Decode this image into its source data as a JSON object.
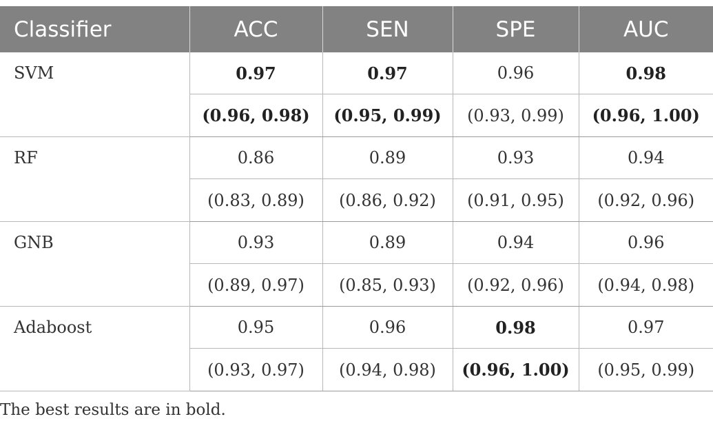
{
  "table": {
    "headers": [
      "Classifier",
      "ACC",
      "SEN",
      "SPE",
      "AUC"
    ],
    "rows": [
      {
        "classifier": "SVM",
        "values": [
          {
            "point": "0.97",
            "ci": "(0.96, 0.98)",
            "bold": true
          },
          {
            "point": "0.97",
            "ci": "(0.95, 0.99)",
            "bold": true
          },
          {
            "point": "0.96",
            "ci": "(0.93, 0.99)",
            "bold": false
          },
          {
            "point": "0.98",
            "ci": "(0.96, 1.00)",
            "bold": true
          }
        ]
      },
      {
        "classifier": "RF",
        "values": [
          {
            "point": "0.86",
            "ci": "(0.83, 0.89)",
            "bold": false
          },
          {
            "point": "0.89",
            "ci": "(0.86, 0.92)",
            "bold": false
          },
          {
            "point": "0.93",
            "ci": "(0.91, 0.95)",
            "bold": false
          },
          {
            "point": "0.94",
            "ci": "(0.92, 0.96)",
            "bold": false
          }
        ]
      },
      {
        "classifier": "GNB",
        "values": [
          {
            "point": "0.93",
            "ci": "(0.89, 0.97)",
            "bold": false
          },
          {
            "point": "0.89",
            "ci": "(0.85, 0.93)",
            "bold": false
          },
          {
            "point": "0.94",
            "ci": "(0.92, 0.96)",
            "bold": false
          },
          {
            "point": "0.96",
            "ci": "(0.94, 0.98)",
            "bold": false
          }
        ]
      },
      {
        "classifier": "Adaboost",
        "values": [
          {
            "point": "0.95",
            "ci": "(0.93, 0.97)",
            "bold": false
          },
          {
            "point": "0.96",
            "ci": "(0.94, 0.98)",
            "bold": false
          },
          {
            "point": "0.98",
            "ci": "(0.96, 1.00)",
            "bold": true
          },
          {
            "point": "0.97",
            "ci": "(0.95, 0.99)",
            "bold": false
          }
        ]
      }
    ]
  },
  "footnote": "The best results are in bold."
}
